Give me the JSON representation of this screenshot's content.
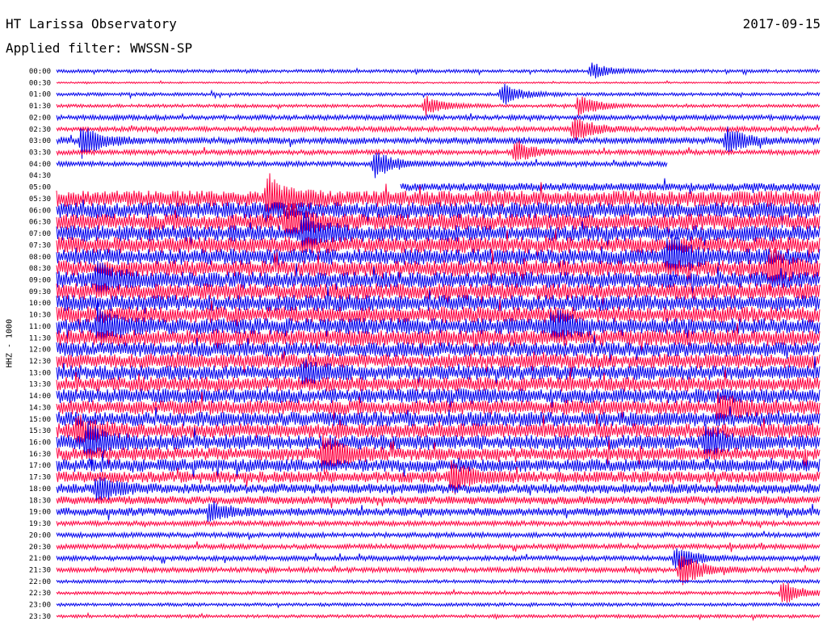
{
  "header": {
    "station": "HT Larissa Observatory",
    "date": "2017-09-15",
    "filter": "Applied filter: WWSSN-SP"
  },
  "chart_data": {
    "type": "line",
    "ylabel": "HHZ - 1000",
    "title": "",
    "rows": [
      "00:00",
      "00:30",
      "01:00",
      "01:30",
      "02:00",
      "02:30",
      "03:00",
      "03:30",
      "04:00",
      "04:30",
      "05:00",
      "05:30",
      "06:00",
      "06:30",
      "07:00",
      "07:30",
      "08:00",
      "08:30",
      "09:00",
      "09:30",
      "10:00",
      "10:30",
      "11:00",
      "11:30",
      "12:00",
      "12:30",
      "13:00",
      "13:30",
      "14:00",
      "14:30",
      "15:00",
      "15:30",
      "16:00",
      "16:30",
      "17:00",
      "17:30",
      "18:00",
      "18:30",
      "19:00",
      "19:30",
      "20:00",
      "20:30",
      "21:00",
      "21:30",
      "22:00",
      "22:30",
      "23:00",
      "23:30"
    ],
    "row_colors": [
      "#0000ee",
      "#ff0040"
    ],
    "x_range": [
      0,
      30
    ],
    "x_unit": "minutes",
    "noise_amplitude": [
      2,
      1,
      2,
      2,
      3,
      3,
      4,
      3,
      3,
      0,
      5,
      10,
      10,
      10,
      10,
      10,
      10,
      10,
      10,
      10,
      10,
      10,
      10,
      10,
      9,
      9,
      9,
      9,
      9,
      9,
      9,
      9,
      9,
      8,
      8,
      7,
      6,
      5,
      5,
      3,
      3,
      3,
      3,
      3,
      2,
      2,
      2,
      2
    ],
    "gaps": [
      {
        "row": "04:00",
        "from": 24,
        "to": 30
      },
      {
        "row": "04:30",
        "from": 0,
        "to": 30
      },
      {
        "row": "05:00",
        "from": 0,
        "to": 13.5
      }
    ],
    "events": [
      {
        "row": "00:00",
        "minute": 21.0,
        "amp": 10
      },
      {
        "row": "01:00",
        "minute": 17.5,
        "amp": 14
      },
      {
        "row": "01:30",
        "minute": 14.5,
        "amp": 12
      },
      {
        "row": "01:30",
        "minute": 20.5,
        "amp": 14
      },
      {
        "row": "02:30",
        "minute": 20.3,
        "amp": 16
      },
      {
        "row": "03:00",
        "minute": 1.0,
        "amp": 20
      },
      {
        "row": "03:00",
        "minute": 26.3,
        "amp": 18
      },
      {
        "row": "03:30",
        "minute": 18.0,
        "amp": 14
      },
      {
        "row": "04:00",
        "minute": 12.5,
        "amp": 18
      },
      {
        "row": "05:30",
        "minute": 8.3,
        "amp": 26
      },
      {
        "row": "06:30",
        "minute": 9.0,
        "amp": 24
      },
      {
        "row": "07:00",
        "minute": 9.7,
        "amp": 22
      },
      {
        "row": "08:00",
        "minute": 24.0,
        "amp": 28
      },
      {
        "row": "08:30",
        "minute": 28.0,
        "amp": 24
      },
      {
        "row": "09:00",
        "minute": 1.6,
        "amp": 20
      },
      {
        "row": "11:00",
        "minute": 1.6,
        "amp": 22
      },
      {
        "row": "11:00",
        "minute": 19.5,
        "amp": 20
      },
      {
        "row": "13:00",
        "minute": 9.7,
        "amp": 14
      },
      {
        "row": "14:30",
        "minute": 26.0,
        "amp": 16
      },
      {
        "row": "15:30",
        "minute": 0.8,
        "amp": 18
      },
      {
        "row": "16:00",
        "minute": 1.2,
        "amp": 22
      },
      {
        "row": "16:00",
        "minute": 25.5,
        "amp": 18
      },
      {
        "row": "16:30",
        "minute": 10.5,
        "amp": 26
      },
      {
        "row": "17:30",
        "minute": 15.5,
        "amp": 20
      },
      {
        "row": "18:00",
        "minute": 1.6,
        "amp": 16
      },
      {
        "row": "19:00",
        "minute": 6.0,
        "amp": 12
      },
      {
        "row": "21:00",
        "minute": 24.3,
        "amp": 16
      },
      {
        "row": "21:30",
        "minute": 24.5,
        "amp": 22
      },
      {
        "row": "22:30",
        "minute": 28.5,
        "amp": 16
      }
    ]
  }
}
